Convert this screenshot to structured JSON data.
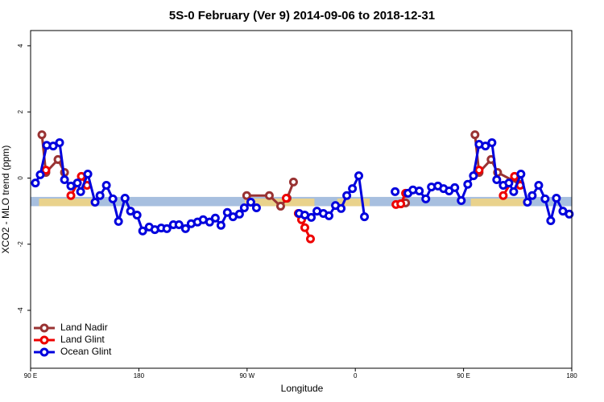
{
  "chart_data": {
    "type": "line",
    "title": "5S-0 February (Ver 9)   2014-09-06 to 2018-12-31",
    "x_label": "Longitude",
    "y_label": "XCO2 - MLO trend (ppm)",
    "xlim": [
      90,
      540
    ],
    "ylim": [
      -5.75,
      4.46
    ],
    "xticks": [
      {
        "value": 90,
        "label": "90 E"
      },
      {
        "value": 180,
        "label": "180"
      },
      {
        "value": 270,
        "label": "90 W"
      },
      {
        "value": 360,
        "label": "0"
      },
      {
        "value": 450,
        "label": "90 E"
      },
      {
        "value": 540,
        "label": "180"
      }
    ],
    "yticks": [
      -4,
      -2,
      0,
      2,
      4
    ],
    "legend": "bottomleft",
    "band": {
      "ylim": [
        -0.85,
        -0.57
      ],
      "color": "#a7bfdf"
    },
    "land": {
      "color": "#f4d57e",
      "ranges": [
        [
          97,
          145
        ],
        [
          268,
          326
        ],
        [
          345,
          372
        ],
        [
          456,
          500
        ]
      ]
    },
    "series": [
      {
        "name": "Land Nadir",
        "color": "#993333",
        "x": [
          99.4,
          102.7,
          112.8,
          118.2,
          null,
          269.7,
          288.5,
          297.9,
          303.3,
          308.6,
          null,
          401.8,
          null,
          459.5,
          462.9,
          472.9,
          478.3,
          497.1
        ],
        "values": [
          1.31,
          0.17,
          0.56,
          0.17,
          null,
          -0.53,
          -0.53,
          -0.85,
          -0.61,
          -0.12,
          null,
          -0.75,
          null,
          1.31,
          0.17,
          0.56,
          0.17,
          -0.19
        ]
      },
      {
        "name": "Land Glint",
        "color": "#ee0000",
        "x": [
          102.7,
          null,
          123.5,
          132.2,
          136.9,
          null,
          302.6,
          null,
          312.6,
          315.3,
          318.0,
          322.7,
          null,
          393.8,
          397.8,
          401.8,
          null,
          462.9,
          null,
          483.0,
          492.4,
          497.1
        ],
        "values": [
          0.24,
          null,
          -0.53,
          0.05,
          -0.22,
          null,
          -0.61,
          null,
          -1.07,
          -1.26,
          -1.5,
          -1.84,
          null,
          -0.8,
          -0.78,
          -0.46,
          null,
          0.24,
          null,
          -0.53,
          0.05,
          -0.22
        ]
      },
      {
        "name": "Ocean Glint",
        "color": "#0000dd",
        "x": [
          94.0,
          98.0,
          103.4,
          108.8,
          114.1,
          118.2,
          123.5,
          128.9,
          131.6,
          137.6,
          143.6,
          147.7,
          153.0,
          158.4,
          163.1,
          168.5,
          173.1,
          178.5,
          183.2,
          188.6,
          193.3,
          198.6,
          203.3,
          208.7,
          213.4,
          218.8,
          223.5,
          228.8,
          233.5,
          238.9,
          243.6,
          248.3,
          253.6,
          258.3,
          263.7,
          267.7,
          273.1,
          277.8,
          null,
          313.3,
          318.0,
          323.4,
          328.1,
          333.4,
          338.1,
          343.5,
          348.2,
          352.9,
          357.6,
          362.9,
          367.6,
          null,
          393.1,
          null,
          403.8,
          407.9,
          413.2,
          418.6,
          423.3,
          428.7,
          433.4,
          438.0,
          442.7,
          448.1,
          453.5,
          458.2,
          462.9,
          468.2,
          473.6,
          477.6,
          483.0,
          487.7,
          491.7,
          497.7,
          503.1,
          507.1,
          512.5,
          517.8,
          522.5,
          527.2,
          532.6,
          537.9
        ],
        "values": [
          -0.15,
          0.1,
          0.99,
          0.97,
          1.07,
          -0.05,
          -0.24,
          -0.15,
          -0.41,
          0.12,
          -0.73,
          -0.53,
          -0.22,
          -0.63,
          -1.31,
          -0.61,
          -1.0,
          -1.12,
          -1.6,
          -1.48,
          -1.56,
          -1.51,
          -1.53,
          -1.41,
          -1.41,
          -1.53,
          -1.38,
          -1.33,
          -1.26,
          -1.33,
          -1.21,
          -1.43,
          -1.04,
          -1.17,
          -1.09,
          -0.9,
          -0.73,
          -0.9,
          null,
          -1.07,
          -1.12,
          -1.19,
          -1.0,
          -1.07,
          -1.14,
          -0.83,
          -0.92,
          -0.53,
          -0.32,
          0.07,
          -1.17,
          null,
          -0.41,
          null,
          -0.46,
          -0.36,
          -0.39,
          -0.63,
          -0.27,
          -0.24,
          -0.32,
          -0.39,
          -0.29,
          -0.68,
          -0.19,
          0.07,
          1.02,
          0.97,
          1.07,
          -0.05,
          -0.22,
          -0.15,
          -0.41,
          0.12,
          -0.73,
          -0.53,
          -0.22,
          -0.63,
          -1.29,
          -0.61,
          -1.0,
          -1.09
        ]
      }
    ]
  }
}
